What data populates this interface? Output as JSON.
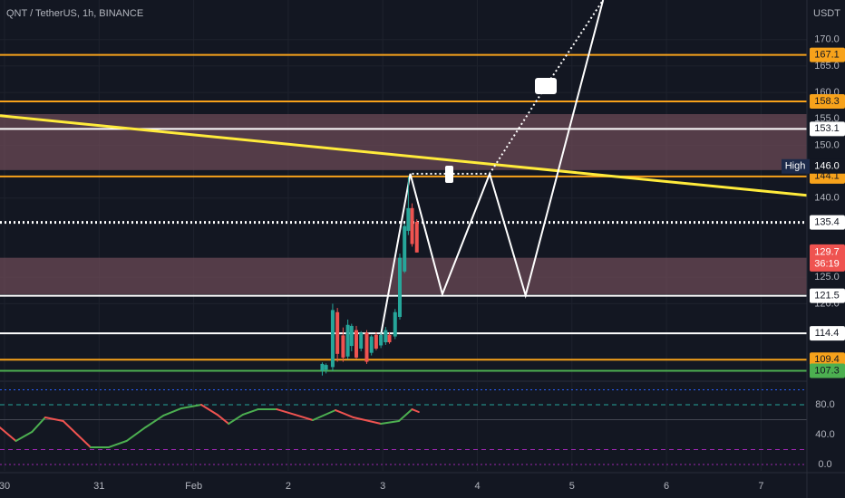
{
  "chart_data": [
    {
      "type": "candlestick",
      "title": "QNT / TetherUS, 1h, BINANCE",
      "y_axis_label": "USDT",
      "x": [
        3.36,
        3.4,
        3.47,
        3.52,
        3.58,
        3.63,
        3.67,
        3.72,
        3.77,
        3.83,
        3.88,
        3.93,
        3.98,
        4.03,
        4.07,
        4.13,
        4.18,
        4.23,
        4.27,
        4.31,
        4.36
      ],
      "open": [
        107.3,
        107.5,
        108.0,
        118.4,
        114.0,
        110.0,
        112.0,
        115.0,
        111.5,
        114.5,
        110.7,
        114.1,
        112.1,
        112.7,
        114.1,
        113.8,
        117.5,
        126.1,
        133.8,
        138.1,
        135.5
      ],
      "high": [
        108.9,
        108.7,
        120.0,
        119.2,
        115.5,
        117.0,
        116.2,
        115.8,
        114.8,
        115.0,
        114.1,
        114.6,
        114.5,
        115.6,
        114.6,
        119.0,
        129.5,
        135.2,
        144.1,
        139.0,
        136.0
      ],
      "low": [
        106.4,
        106.8,
        107.3,
        109.0,
        109.0,
        109.5,
        111.0,
        109.5,
        111.0,
        108.6,
        110.2,
        111.2,
        111.6,
        112.2,
        112.4,
        113.3,
        117.0,
        125.8,
        133.0,
        130.8,
        129.7
      ],
      "close": [
        108.6,
        108.4,
        118.8,
        110.5,
        109.8,
        116.0,
        115.8,
        109.8,
        114.5,
        109.0,
        113.8,
        111.5,
        114.1,
        115.0,
        112.7,
        118.4,
        128.7,
        134.7,
        138.1,
        131.3,
        129.7
      ],
      "up_color": "#26a69a",
      "down_color": "#ef5350",
      "xlim": [
        -0.048,
        8.485
      ],
      "xticks": [
        {
          "value": 0,
          "label": "30"
        },
        {
          "value": 1,
          "label": "31"
        },
        {
          "value": 2,
          "label": "Feb"
        },
        {
          "value": 3,
          "label": "2"
        },
        {
          "value": 4,
          "label": "3"
        },
        {
          "value": 5,
          "label": "4"
        },
        {
          "value": 6,
          "label": "5"
        },
        {
          "value": 7,
          "label": "6"
        },
        {
          "value": 8,
          "label": "7"
        }
      ],
      "ylim": [
        105.5,
        177.5
      ],
      "yticks": [
        {
          "value": 170,
          "label": "170.0"
        },
        {
          "value": 165,
          "label": "165.0"
        },
        {
          "value": 160,
          "label": "160.0"
        },
        {
          "value": 155,
          "label": "155.0"
        },
        {
          "value": 150,
          "label": "150.0"
        },
        {
          "value": 140,
          "label": "140.0"
        },
        {
          "value": 125,
          "label": "125.0"
        },
        {
          "value": 120,
          "label": "120.0"
        }
      ],
      "grid": true,
      "zones": [
        [
          155.9,
          145.3
        ],
        [
          128.7,
          121.8
        ]
      ],
      "zone_color": "#6b4a55",
      "levels": [
        {
          "value": 167.1,
          "color": "#f7a21b",
          "style": "solid"
        },
        {
          "value": 158.3,
          "color": "#f7a21b",
          "style": "solid"
        },
        {
          "value": 153.1,
          "color": "#ffffff",
          "style": "solid"
        },
        {
          "value": 144.1,
          "color": "#f7a21b",
          "style": "solid"
        },
        {
          "value": 135.4,
          "color": "#ffffff",
          "style": "dotted"
        },
        {
          "value": 121.5,
          "color": "#ffffff",
          "style": "solid"
        },
        {
          "value": 114.4,
          "color": "#ffffff",
          "style": "solid"
        },
        {
          "value": 109.4,
          "color": "#f7a21b",
          "style": "solid"
        },
        {
          "value": 107.3,
          "color": "#4caf50",
          "style": "solid"
        }
      ],
      "trend_line": {
        "x": [
          -0.048,
          8.485
        ],
        "values": [
          155.6,
          140.5
        ],
        "color": "#ffeb3b"
      },
      "projection": {
        "x": [
          3.98,
          4.29,
          4.63,
          5.13,
          5.51,
          6.33
        ],
        "values": [
          114.1,
          144.6,
          121.8,
          144.6,
          121.6,
          177.5
        ],
        "color": "#ffffff"
      },
      "projection_dotted": {
        "x": [
          4.31,
          5.13,
          5.7,
          6.33
        ],
        "values": [
          144.6,
          144.6,
          160.5,
          177.5
        ],
        "color": "#ffffff"
      },
      "high_marker": {
        "label": "High",
        "value": 146,
        "value_label": "146.0"
      },
      "last_price": {
        "value": 129.7,
        "countdown": "36:19",
        "color": "#ef5350"
      }
    },
    {
      "type": "line",
      "x": [
        -0.05,
        0.12,
        0.29,
        0.43,
        0.62,
        0.77,
        0.91,
        1.1,
        1.29,
        1.49,
        1.68,
        1.87,
        2.08,
        2.25,
        2.37,
        2.52,
        2.68,
        2.88,
        3.07,
        3.26,
        3.5,
        3.69,
        3.98,
        4.17,
        4.31,
        4.38
      ],
      "values": [
        49.7,
        31.5,
        43.6,
        63.0,
        58.2,
        40.0,
        23.0,
        23.0,
        31.5,
        49.7,
        65.5,
        75.2,
        80.0,
        66.7,
        54.5,
        66.7,
        73.9,
        73.9,
        66.7,
        59.4,
        72.7,
        63.0,
        54.5,
        58.2,
        73.9,
        70.3
      ],
      "up_color": "#4caf50",
      "down_color": "#ef5350",
      "ylim": [
        -8.5,
        110.3
      ],
      "yticks": [
        {
          "value": 80,
          "label": "80.0"
        },
        {
          "value": 40,
          "label": "40.0"
        },
        {
          "value": 0,
          "label": "0.0"
        }
      ],
      "levels": [
        {
          "value": 100,
          "color": "#2962ff",
          "style": "dotted"
        },
        {
          "value": 80,
          "color": "#26a69a",
          "style": "dashed"
        },
        {
          "value": 60,
          "color": "#434651",
          "style": "solid"
        },
        {
          "value": 20,
          "color": "#9c27b0",
          "style": "dashed"
        },
        {
          "value": 0,
          "color": "#9c27b0",
          "style": "dotted"
        }
      ]
    }
  ]
}
